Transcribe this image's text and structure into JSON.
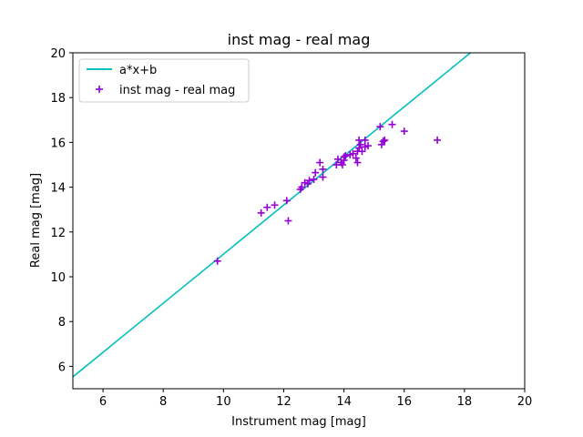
{
  "chart_data": {
    "type": "scatter",
    "title": "inst mag - real mag",
    "xlabel": "Instrument mag [mag]",
    "ylabel": "Real mag [mag]",
    "xlim": [
      5,
      20
    ],
    "ylim": [
      5,
      20
    ],
    "xticks": [
      6,
      8,
      10,
      12,
      14,
      16,
      18,
      20
    ],
    "yticks": [
      6,
      8,
      10,
      12,
      14,
      16,
      18,
      20
    ],
    "grid": false,
    "legend_position": "top-left",
    "line": {
      "name": "a*x+b",
      "color": "#00bfbf",
      "x": [
        5,
        18.2
      ],
      "y": [
        5.53,
        20.0
      ]
    },
    "scatter": {
      "name": "inst mag - real mag",
      "color": "#9400d3",
      "points": [
        [
          9.8,
          10.7
        ],
        [
          11.25,
          12.85
        ],
        [
          11.45,
          13.1
        ],
        [
          11.7,
          13.2
        ],
        [
          12.1,
          13.4
        ],
        [
          12.15,
          12.5
        ],
        [
          12.55,
          13.9
        ],
        [
          12.6,
          14.0
        ],
        [
          12.7,
          14.2
        ],
        [
          12.8,
          14.15
        ],
        [
          12.85,
          14.3
        ],
        [
          13.0,
          14.35
        ],
        [
          13.05,
          14.65
        ],
        [
          13.2,
          15.1
        ],
        [
          13.3,
          14.45
        ],
        [
          13.3,
          14.8
        ],
        [
          13.75,
          15.0
        ],
        [
          13.8,
          15.25
        ],
        [
          13.9,
          15.1
        ],
        [
          13.95,
          15.0
        ],
        [
          14.0,
          15.2
        ],
        [
          14.0,
          15.35
        ],
        [
          14.05,
          15.4
        ],
        [
          14.2,
          15.45
        ],
        [
          14.3,
          15.5
        ],
        [
          14.4,
          15.3
        ],
        [
          14.45,
          15.6
        ],
        [
          14.45,
          15.1
        ],
        [
          14.5,
          15.75
        ],
        [
          14.5,
          16.1
        ],
        [
          14.55,
          15.9
        ],
        [
          14.6,
          15.6
        ],
        [
          14.7,
          15.8
        ],
        [
          14.7,
          16.1
        ],
        [
          14.8,
          15.85
        ],
        [
          15.2,
          16.7
        ],
        [
          15.25,
          15.9
        ],
        [
          15.3,
          16.05
        ],
        [
          15.35,
          16.1
        ],
        [
          15.6,
          16.8
        ],
        [
          16.0,
          16.5
        ],
        [
          17.1,
          16.1
        ]
      ]
    }
  }
}
